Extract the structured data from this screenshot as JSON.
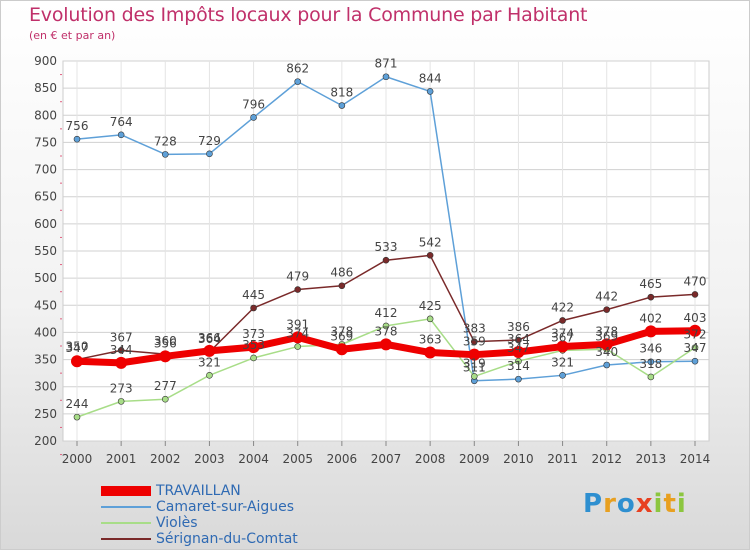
{
  "header": {
    "title": "Evolution des Impôts locaux pour la Commune par Habitant",
    "subtitle": "(en € et par an)"
  },
  "logo": {
    "letters": [
      {
        "ch": "P",
        "color": "#2e8fd0"
      },
      {
        "ch": "r",
        "color": "#e8a020"
      },
      {
        "ch": "o",
        "color": "#2e8fd0"
      },
      {
        "ch": "x",
        "color": "#e84020"
      },
      {
        "ch": "i",
        "color": "#8cc63f"
      },
      {
        "ch": "t",
        "color": "#e8a020"
      },
      {
        "ch": "i",
        "color": "#8cc63f"
      }
    ]
  },
  "chart_data": {
    "type": "line",
    "title": "Evolution des Impôts locaux pour la Commune par Habitant",
    "subtitle": "(en € et par an)",
    "x": [
      2000,
      2001,
      2002,
      2003,
      2004,
      2005,
      2006,
      2007,
      2008,
      2009,
      2010,
      2011,
      2012,
      2013,
      2014
    ],
    "ylim": [
      200,
      900
    ],
    "yticks": [
      200,
      250,
      300,
      350,
      400,
      450,
      500,
      550,
      600,
      650,
      700,
      750,
      800,
      850,
      900
    ],
    "grid": true,
    "legend_position": "bottom-left",
    "series": [
      {
        "name": "TRAVAILLAN",
        "color": "#ee0000",
        "values": [
          347,
          344,
          356,
          366,
          373,
          391,
          369,
          378,
          363,
          359,
          364,
          374,
          378,
          402,
          403
        ]
      },
      {
        "name": "Camaret-sur-Aigues",
        "color": "#5ea0d8",
        "values": [
          756,
          764,
          728,
          729,
          796,
          862,
          818,
          871,
          844,
          311,
          314,
          321,
          340,
          346,
          347
        ]
      },
      {
        "name": "Violès",
        "color": "#a8dd88",
        "values": [
          244,
          273,
          277,
          321,
          353,
          374,
          378,
          412,
          425,
          319,
          347,
          367,
          369,
          318,
          372
        ]
      },
      {
        "name": "Sérignan-du-Comtat",
        "color": "#7a2a2a",
        "values": [
          350,
          367,
          360,
          364,
          445,
          479,
          486,
          533,
          542,
          383,
          386,
          422,
          442,
          465,
          470
        ]
      }
    ]
  }
}
